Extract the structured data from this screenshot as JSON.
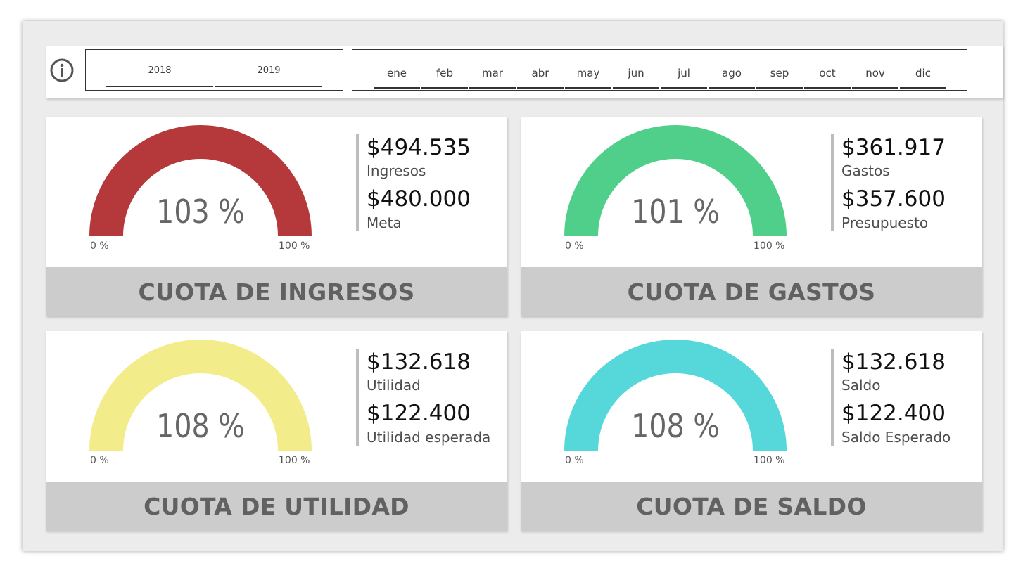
{
  "filters": {
    "years": [
      "2018",
      "2019"
    ],
    "months": [
      "ene",
      "feb",
      "mar",
      "abr",
      "may",
      "jun",
      "jul",
      "ago",
      "sep",
      "oct",
      "nov",
      "dic"
    ]
  },
  "cards": [
    {
      "title": "CUOTA DE INGRESOS",
      "percent_label": "103 %",
      "percent": 103,
      "axis_min": "0 %",
      "axis_max": "100 %",
      "color": "#b5393a",
      "primary_value": "$494.535",
      "primary_label": "Ingresos",
      "secondary_value": "$480.000",
      "secondary_label": "Meta"
    },
    {
      "title": "CUOTA DE GASTOS",
      "percent_label": "101 %",
      "percent": 101,
      "axis_min": "0 %",
      "axis_max": "100 %",
      "color": "#4fcf8a",
      "primary_value": "$361.917",
      "primary_label": "Gastos",
      "secondary_value": "$357.600",
      "secondary_label": "Presupuesto"
    },
    {
      "title": "CUOTA DE UTILIDAD",
      "percent_label": "108 %",
      "percent": 108,
      "axis_min": "0 %",
      "axis_max": "100 %",
      "color": "#f3ec8a",
      "primary_value": "$132.618",
      "primary_label": "Utilidad",
      "secondary_value": "$122.400",
      "secondary_label": "Utilidad esperada"
    },
    {
      "title": "CUOTA DE SALDO",
      "percent_label": "108 %",
      "percent": 108,
      "axis_min": "0 %",
      "axis_max": "100 %",
      "color": "#56d8da",
      "primary_value": "$132.618",
      "primary_label": "Saldo",
      "secondary_value": "$122.400",
      "secondary_label": "Saldo Esperado"
    }
  ]
}
